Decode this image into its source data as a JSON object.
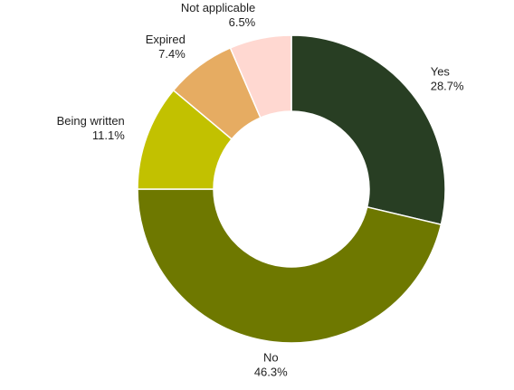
{
  "chart_data": {
    "type": "pie",
    "variant": "donut",
    "title": "",
    "legend": "none",
    "slices": [
      {
        "label": "Yes",
        "value": 28.7,
        "value_label": "28.7%",
        "color": "#283e23"
      },
      {
        "label": "No",
        "value": 46.3,
        "value_label": "46.3%",
        "color": "#6e7800"
      },
      {
        "label": "Being written",
        "value": 11.1,
        "value_label": "11.1%",
        "color": "#c2c100"
      },
      {
        "label": "Expired",
        "value": 7.4,
        "value_label": "7.4%",
        "color": "#e6ac62"
      },
      {
        "label": "Not applicable",
        "value": 6.5,
        "value_label": "6.5%",
        "color": "#ffd8d1"
      }
    ]
  }
}
